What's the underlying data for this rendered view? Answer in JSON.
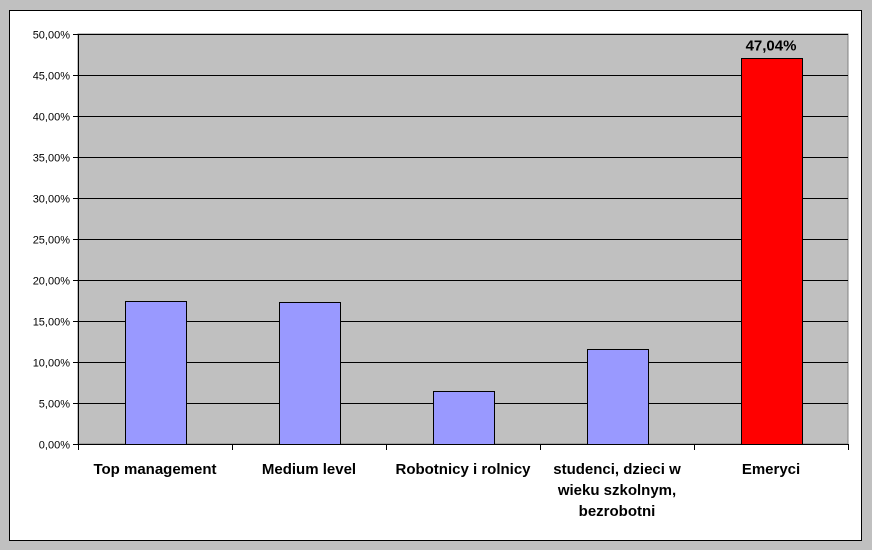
{
  "chart_data": {
    "type": "bar",
    "categories": [
      [
        "Top management"
      ],
      [
        "Medium level"
      ],
      [
        "Robotnicy i rolnicy"
      ],
      [
        "studenci, dzieci w",
        "wieku szkolnym,",
        "bezrobotni"
      ],
      [
        "Emeryci"
      ]
    ],
    "values": [
      17.4,
      17.3,
      6.5,
      11.6,
      47.04
    ],
    "bar_colors": [
      "#9999ff",
      "#9999ff",
      "#9999ff",
      "#9999ff",
      "#ff0000"
    ],
    "data_labels": [
      null,
      null,
      null,
      null,
      "47,04%"
    ],
    "yticks": [
      "0,00%",
      "5,00%",
      "10,00%",
      "15,00%",
      "20,00%",
      "25,00%",
      "30,00%",
      "35,00%",
      "40,00%",
      "45,00%",
      "50,00%"
    ],
    "ylim": [
      0,
      50
    ],
    "title": "",
    "xlabel": "",
    "ylabel": "",
    "grid": true,
    "plot_background": "#c0c0c0",
    "gridline_color": "#000000"
  }
}
